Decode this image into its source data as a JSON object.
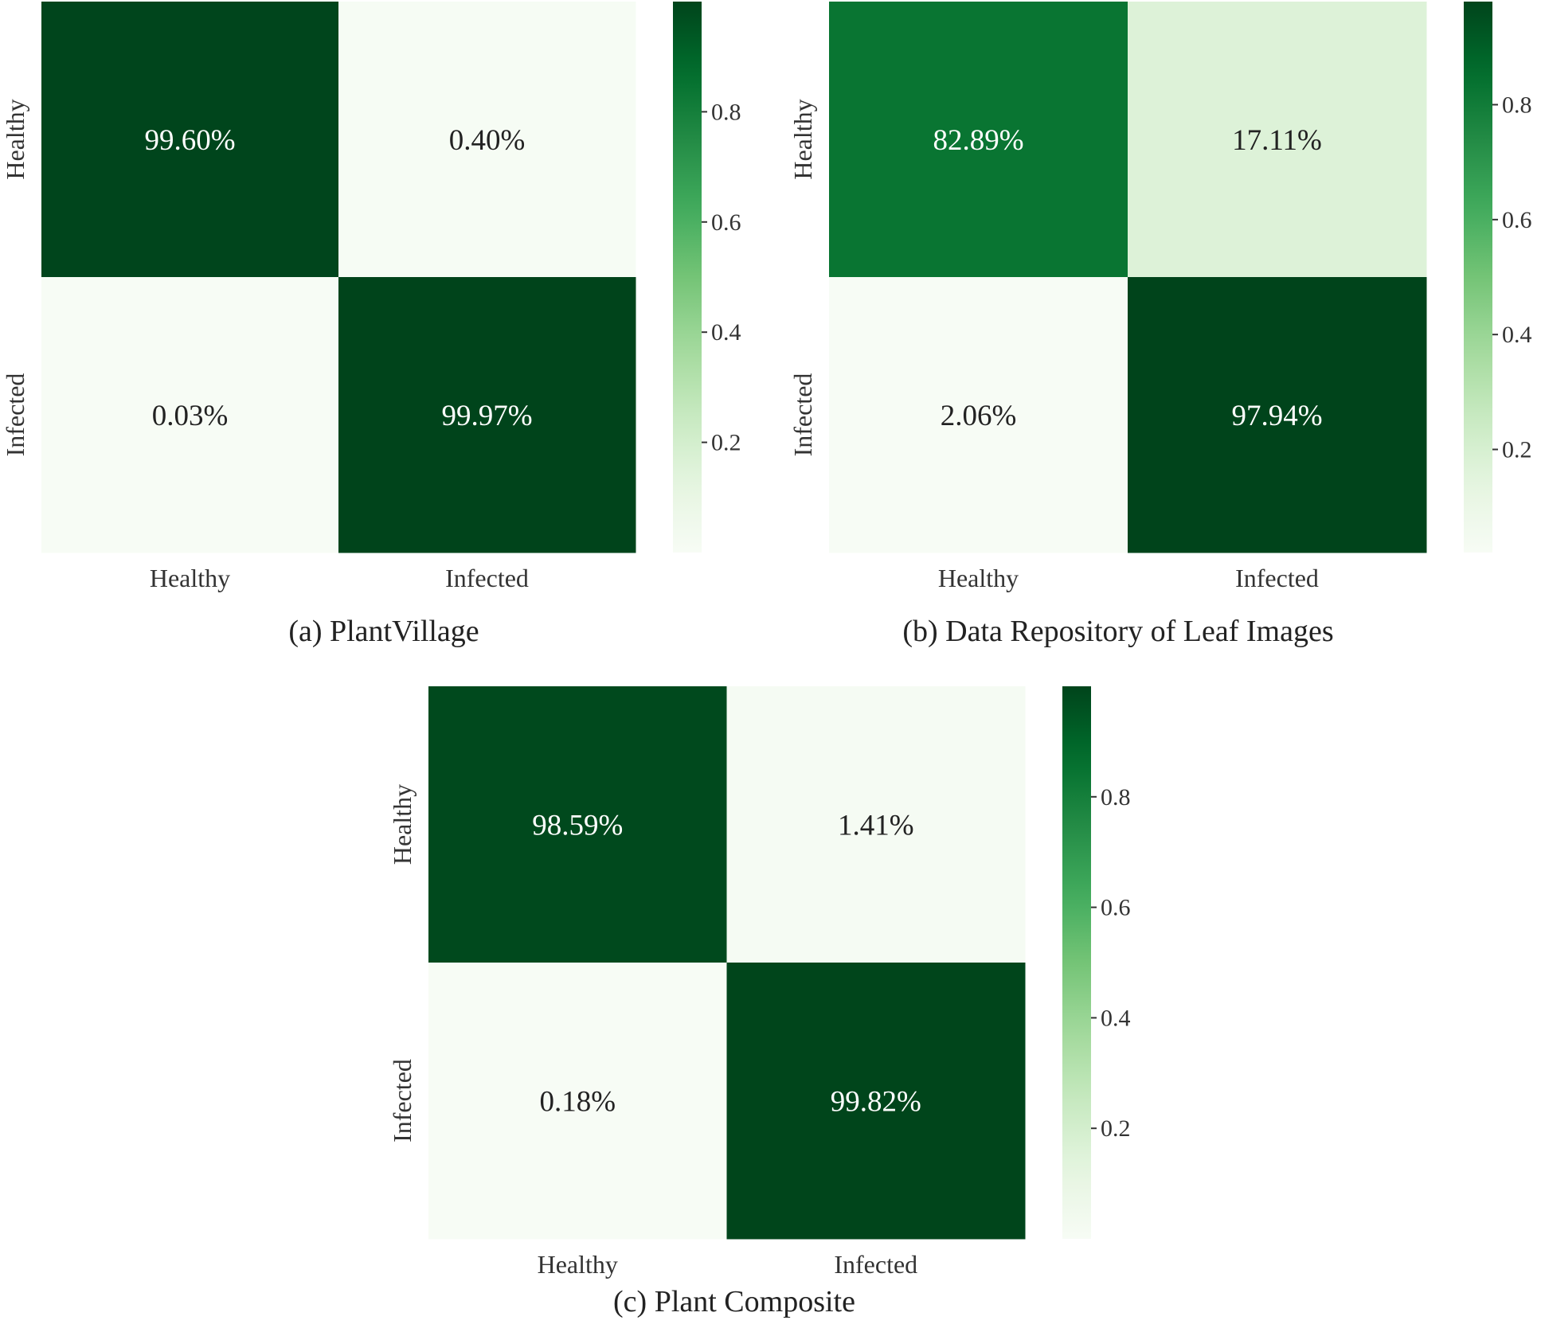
{
  "chart_data": [
    {
      "type": "heatmap",
      "caption": "(a)   PlantVillage",
      "row_labels": [
        "Healthy",
        "Infected"
      ],
      "col_labels": [
        "Healthy",
        "Infected"
      ],
      "values": [
        [
          0.996,
          0.004
        ],
        [
          0.0003,
          0.9997
        ]
      ],
      "cell_labels": [
        [
          "99.60%",
          "0.40%"
        ],
        [
          "0.03%",
          "99.97%"
        ]
      ],
      "colorbar": {
        "colormap": "Greens",
        "range": [
          0,
          1
        ],
        "ticks": [
          0.2,
          0.4,
          0.6,
          0.8
        ],
        "tick_labels": [
          "0.2",
          "0.4",
          "0.6",
          "0.8"
        ]
      }
    },
    {
      "type": "heatmap",
      "caption": "(b) Data Repository of Leaf Images",
      "row_labels": [
        "Healthy",
        "Infected"
      ],
      "col_labels": [
        "Healthy",
        "Infected"
      ],
      "values": [
        [
          0.8289,
          0.1711
        ],
        [
          0.0206,
          0.9794
        ]
      ],
      "cell_labels": [
        [
          "82.89%",
          "17.11%"
        ],
        [
          "2.06%",
          "97.94%"
        ]
      ],
      "colorbar": {
        "colormap": "Greens",
        "range": [
          0.0206,
          0.9794
        ],
        "ticks": [
          0.2,
          0.4,
          0.6,
          0.8
        ],
        "tick_labels": [
          "0.2",
          "0.4",
          "0.6",
          "0.8"
        ]
      }
    },
    {
      "type": "heatmap",
      "caption": "(c) Plant Composite",
      "row_labels": [
        "Healthy",
        "Infected"
      ],
      "col_labels": [
        "Healthy",
        "Infected"
      ],
      "values": [
        [
          0.9859,
          0.0141
        ],
        [
          0.0018,
          0.9982
        ]
      ],
      "cell_labels": [
        [
          "98.59%",
          "1.41%"
        ],
        [
          "0.18%",
          "99.82%"
        ]
      ],
      "colorbar": {
        "colormap": "Greens",
        "range": [
          0,
          1
        ],
        "ticks": [
          0.2,
          0.4,
          0.6,
          0.8
        ],
        "tick_labels": [
          "0.2",
          "0.4",
          "0.6",
          "0.8"
        ]
      }
    }
  ],
  "colors": {
    "greens": [
      "#f7fcf5",
      "#e5f5e0",
      "#c7e9c0",
      "#a1d99b",
      "#74c476",
      "#41ab5d",
      "#238b45",
      "#006d2c",
      "#00441b"
    ],
    "dark_cell": "#0d4a26",
    "light_cell": "#f7f9f4",
    "text_dark": "#222222",
    "text_light": "#ffffff"
  }
}
